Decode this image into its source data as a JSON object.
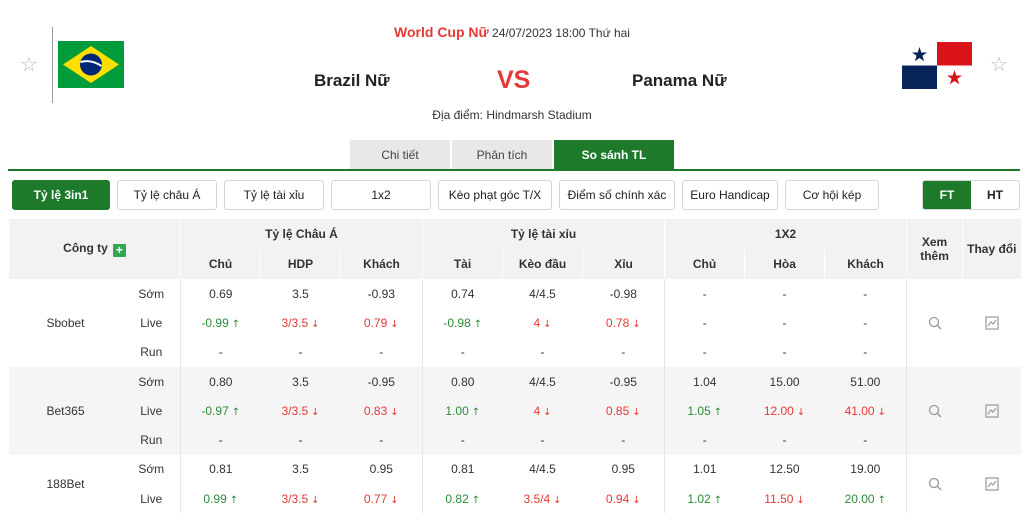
{
  "match": {
    "league": "World Cup Nữ",
    "datetime": "24/07/2023 18:00 Thứ hai",
    "home_team": "Brazil Nữ",
    "away_team": "Panama Nữ",
    "vs": "VS",
    "venue": "Địa điểm: Hindmarsh Stadium"
  },
  "main_tabs": [
    {
      "label": "Chi tiết",
      "active": false
    },
    {
      "label": "Phân tích",
      "active": false
    },
    {
      "label": "So sánh TL",
      "active": true
    }
  ],
  "sub_tabs": [
    {
      "label": "Tỷ lệ 3in1",
      "active": true
    },
    {
      "label": "Tỷ lệ châu Á",
      "active": false
    },
    {
      "label": "Tỷ lệ tài xỉu",
      "active": false
    },
    {
      "label": "1x2",
      "active": false
    },
    {
      "label": "Kèo phạt góc T/X",
      "active": false
    },
    {
      "label": "Điểm số chính xác",
      "active": false
    },
    {
      "label": "Euro Handicap",
      "active": false
    },
    {
      "label": "Cơ hội kép",
      "active": false
    }
  ],
  "period_toggle": {
    "ft": "FT",
    "ht": "HT",
    "active": "FT"
  },
  "table": {
    "company_header": "Công ty",
    "group_headers": {
      "asian": "Tỷ lệ Châu Á",
      "ou": "Tỷ lệ tài xỉu",
      "x12": "1X2",
      "view_more": "Xem thêm",
      "changes": "Thay đổi"
    },
    "sub_headers": {
      "a_home": "Chủ",
      "a_hdp": "HDP",
      "a_away": "Khách",
      "o_over": "Tài",
      "o_line": "Kèo đầu",
      "o_under": "Xỉu",
      "x_home": "Chủ",
      "x_draw": "Hòa",
      "x_away": "Khách"
    },
    "colors": {
      "accent": "#1e7a2b",
      "up": "#2e8b3a",
      "down": "#e53935"
    },
    "bookmakers": [
      {
        "name": "Sbobet",
        "rows": [
          {
            "label": "Sớm",
            "run": false,
            "cells": [
              {
                "v": "0.69"
              },
              {
                "v": "3.5"
              },
              {
                "v": "-0.93"
              },
              {
                "v": "0.74"
              },
              {
                "v": "4/4.5"
              },
              {
                "v": "-0.98"
              },
              {
                "v": "-"
              },
              {
                "v": "-"
              },
              {
                "v": "-"
              }
            ]
          },
          {
            "label": "Live",
            "run": false,
            "cells": [
              {
                "v": "-0.99",
                "d": "up"
              },
              {
                "v": "3/3.5",
                "d": "down"
              },
              {
                "v": "0.79",
                "d": "down"
              },
              {
                "v": "-0.98",
                "d": "up"
              },
              {
                "v": "4",
                "d": "down"
              },
              {
                "v": "0.78",
                "d": "down"
              },
              {
                "v": "-"
              },
              {
                "v": "-"
              },
              {
                "v": "-"
              }
            ]
          },
          {
            "label": "Run",
            "run": true,
            "cells": [
              {
                "v": "-"
              },
              {
                "v": "-"
              },
              {
                "v": "-"
              },
              {
                "v": "-"
              },
              {
                "v": "-"
              },
              {
                "v": "-"
              },
              {
                "v": "-"
              },
              {
                "v": "-"
              },
              {
                "v": "-"
              }
            ]
          }
        ]
      },
      {
        "name": "Bet365",
        "rows": [
          {
            "label": "Sớm",
            "run": false,
            "cells": [
              {
                "v": "0.80"
              },
              {
                "v": "3.5"
              },
              {
                "v": "-0.95"
              },
              {
                "v": "0.80"
              },
              {
                "v": "4/4.5"
              },
              {
                "v": "-0.95"
              },
              {
                "v": "1.04"
              },
              {
                "v": "15.00"
              },
              {
                "v": "51.00"
              }
            ]
          },
          {
            "label": "Live",
            "run": false,
            "cells": [
              {
                "v": "-0.97",
                "d": "up"
              },
              {
                "v": "3/3.5",
                "d": "down"
              },
              {
                "v": "0.83",
                "d": "down"
              },
              {
                "v": "1.00",
                "d": "up"
              },
              {
                "v": "4",
                "d": "down"
              },
              {
                "v": "0.85",
                "d": "down"
              },
              {
                "v": "1.05",
                "d": "up"
              },
              {
                "v": "12.00",
                "d": "down"
              },
              {
                "v": "41.00",
                "d": "down"
              }
            ]
          },
          {
            "label": "Run",
            "run": true,
            "cells": [
              {
                "v": "-"
              },
              {
                "v": "-"
              },
              {
                "v": "-"
              },
              {
                "v": "-"
              },
              {
                "v": "-"
              },
              {
                "v": "-"
              },
              {
                "v": "-"
              },
              {
                "v": "-"
              },
              {
                "v": "-"
              }
            ]
          }
        ]
      },
      {
        "name": "188Bet",
        "rows": [
          {
            "label": "Sớm",
            "run": false,
            "cells": [
              {
                "v": "0.81"
              },
              {
                "v": "3.5"
              },
              {
                "v": "0.95"
              },
              {
                "v": "0.81"
              },
              {
                "v": "4/4.5"
              },
              {
                "v": "0.95"
              },
              {
                "v": "1.01"
              },
              {
                "v": "12.50"
              },
              {
                "v": "19.00"
              }
            ]
          },
          {
            "label": "Live",
            "run": false,
            "cells": [
              {
                "v": "0.99",
                "d": "up"
              },
              {
                "v": "3/3.5",
                "d": "down"
              },
              {
                "v": "0.77",
                "d": "down"
              },
              {
                "v": "0.82",
                "d": "up"
              },
              {
                "v": "3.5/4",
                "d": "down"
              },
              {
                "v": "0.94",
                "d": "down"
              },
              {
                "v": "1.02",
                "d": "up"
              },
              {
                "v": "11.50",
                "d": "down"
              },
              {
                "v": "20.00",
                "d": "up"
              }
            ]
          }
        ]
      }
    ]
  }
}
